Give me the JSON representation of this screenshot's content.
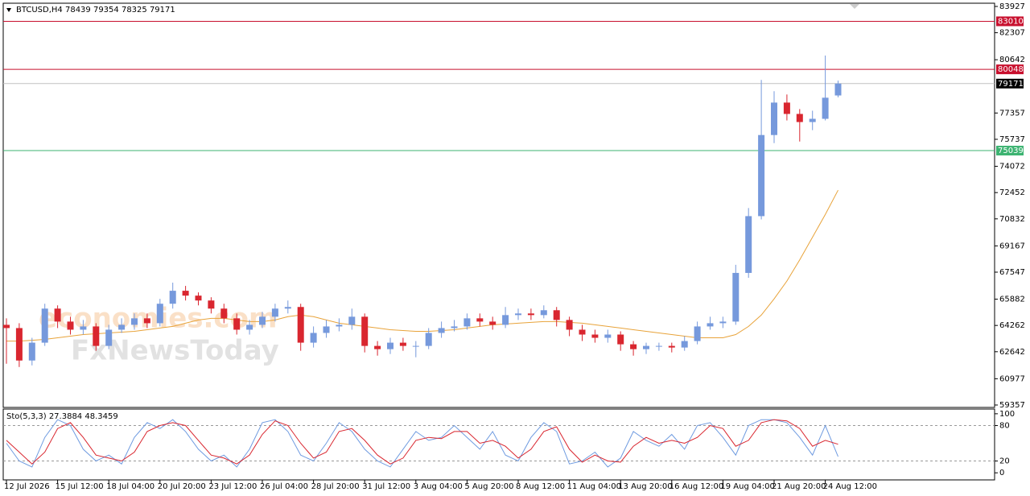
{
  "chart_data": {
    "type": "candlestick",
    "symbol_title": "BTCUSD,H4  78439 79354 78325 79171",
    "watermarks": [
      "economies.com",
      "FxNewsToday"
    ],
    "up_color": "#7699dc",
    "down_color": "#d9262f",
    "categories": [
      "12 Jul 2026",
      null,
      null,
      null,
      "15 Jul 12:00",
      null,
      null,
      null,
      "18 Jul 04:00",
      null,
      null,
      null,
      "20 Jul 20:00",
      null,
      null,
      null,
      "23 Jul 12:00",
      null,
      null,
      null,
      "26 Jul 04:00",
      null,
      null,
      null,
      "28 Jul 20:00",
      null,
      null,
      null,
      "31 Jul 12:00",
      null,
      null,
      null,
      "3 Aug 04:00",
      null,
      null,
      null,
      "5 Aug 20:00",
      null,
      null,
      null,
      "8 Aug 12:00",
      null,
      null,
      null,
      "11 Aug 04:00",
      null,
      null,
      null,
      "13 Aug 20:00",
      null,
      null,
      null,
      "16 Aug 12:00",
      null,
      null,
      null,
      "19 Aug 04:00",
      null,
      null,
      null,
      "21 Aug 20:00",
      null,
      null,
      null,
      "24 Aug 12:00",
      null
    ],
    "open": [
      64300,
      64100,
      62100,
      63200,
      65300,
      64500,
      64000,
      64200,
      63000,
      64000,
      64300,
      64700,
      64400,
      65600,
      66400,
      66100,
      65800,
      65300,
      64700,
      64000,
      64300,
      64800,
      65300,
      65400,
      63200,
      63800,
      64200,
      64300,
      64800,
      63000,
      62800,
      63200,
      63000,
      63000,
      63800,
      64100,
      64200,
      64700,
      64500,
      64300,
      64900,
      65000,
      64900,
      65200,
      64600,
      64000,
      63700,
      63500,
      63700,
      63100,
      62800,
      63000,
      63000,
      62900,
      63300,
      64200,
      64400,
      64500,
      67500,
      71000,
      76000,
      78000,
      77300,
      76800,
      77000,
      78439
    ],
    "high": [
      64700,
      64400,
      63500,
      65600,
      65500,
      64800,
      64600,
      64400,
      64300,
      64700,
      65000,
      65000,
      65900,
      66900,
      66700,
      66300,
      66000,
      65600,
      65000,
      64600,
      65100,
      65600,
      65800,
      65600,
      64200,
      64600,
      64700,
      65300,
      65000,
      63300,
      63500,
      63500,
      63300,
      64100,
      64500,
      64600,
      65000,
      65000,
      64800,
      65400,
      65300,
      65300,
      65500,
      65400,
      64800,
      64300,
      64000,
      64000,
      63900,
      63300,
      63200,
      63200,
      63200,
      63600,
      64500,
      64800,
      64800,
      68000,
      71500,
      79400,
      78700,
      78500,
      77600,
      77500,
      80900,
      79354
    ],
    "low": [
      61900,
      61700,
      61800,
      63000,
      64100,
      63700,
      63700,
      62700,
      62800,
      63800,
      64000,
      64100,
      64200,
      65300,
      65800,
      65500,
      65000,
      64400,
      63700,
      63700,
      64100,
      64500,
      65000,
      62700,
      62900,
      63500,
      63900,
      64000,
      62600,
      62400,
      62500,
      62700,
      62300,
      62800,
      63500,
      63900,
      64000,
      64200,
      64000,
      64100,
      64600,
      64600,
      64700,
      64200,
      63600,
      63300,
      63200,
      63200,
      62700,
      62400,
      62500,
      62700,
      62600,
      62700,
      63100,
      64000,
      64100,
      64300,
      67200,
      70800,
      75500,
      76900,
      75600,
      76300,
      76900,
      78325
    ],
    "close": [
      64100,
      62100,
      63200,
      65300,
      64500,
      64000,
      64200,
      63000,
      64000,
      64300,
      64700,
      64400,
      65600,
      66400,
      66100,
      65800,
      65300,
      64700,
      64000,
      64300,
      64800,
      65300,
      65400,
      63200,
      63800,
      64200,
      64300,
      64800,
      63000,
      62800,
      63200,
      63000,
      63000,
      63800,
      64100,
      64200,
      64700,
      64500,
      64300,
      64900,
      65000,
      64900,
      65200,
      64600,
      64000,
      63700,
      63500,
      63700,
      63100,
      62800,
      63000,
      63000,
      62900,
      63300,
      64200,
      64400,
      64500,
      67500,
      71000,
      76000,
      78000,
      77300,
      76800,
      77000,
      78300,
      79171
    ],
    "ma": {
      "color": "#e8a33a",
      "values": [
        63300,
        63300,
        63350,
        63400,
        63500,
        63600,
        63700,
        63750,
        63800,
        63850,
        63900,
        64000,
        64100,
        64200,
        64400,
        64600,
        64700,
        64700,
        64600,
        64500,
        64500,
        64600,
        64800,
        64900,
        64800,
        64600,
        64400,
        64300,
        64200,
        64100,
        64000,
        63950,
        63900,
        63900,
        63950,
        64000,
        64100,
        64200,
        64300,
        64350,
        64400,
        64450,
        64500,
        64500,
        64450,
        64400,
        64300,
        64200,
        64100,
        64000,
        63900,
        63800,
        63700,
        63600,
        63500,
        63500,
        63500,
        63700,
        64200,
        64900,
        65900,
        67000,
        68300,
        69700,
        71100,
        72600
      ]
    },
    "ylim": [
      59208,
      84125
    ],
    "yticks": [
      83927,
      82307,
      80642,
      77357,
      75737,
      74072,
      72452,
      70832,
      69167,
      67547,
      65882,
      64262,
      62642,
      60977,
      59357
    ],
    "levels": [
      {
        "value": 83010,
        "color": "#c8102e"
      },
      {
        "value": 80048,
        "color": "#c8102e"
      },
      {
        "value": 79171,
        "color": "#000000",
        "line_color": "#c0c0c0"
      },
      {
        "value": 75039,
        "color": "#3cb371"
      }
    ],
    "oscillator": {
      "title": "Sto(5,3,3) 27.3884 48.3459",
      "ylim": [
        -12,
        108
      ],
      "yticks": [
        0,
        20,
        80,
        100
      ],
      "levels": [
        20,
        80
      ],
      "series": [
        {
          "color": "#6f9be0",
          "values": [
            50,
            20,
            10,
            60,
            90,
            80,
            40,
            20,
            30,
            15,
            60,
            85,
            75,
            90,
            70,
            40,
            20,
            30,
            10,
            40,
            85,
            90,
            70,
            30,
            20,
            50,
            85,
            70,
            40,
            20,
            10,
            40,
            70,
            55,
            60,
            80,
            60,
            40,
            70,
            30,
            20,
            60,
            85,
            70,
            15,
            20,
            35,
            10,
            25,
            70,
            55,
            45,
            65,
            40,
            80,
            85,
            60,
            30,
            80,
            90,
            90,
            85,
            60,
            30,
            80,
            27.3884
          ]
        },
        {
          "color": "#d9262f",
          "values": [
            55,
            35,
            15,
            35,
            75,
            85,
            60,
            30,
            25,
            20,
            35,
            70,
            80,
            85,
            80,
            55,
            30,
            25,
            15,
            30,
            65,
            88,
            80,
            50,
            25,
            35,
            70,
            75,
            55,
            30,
            15,
            25,
            55,
            60,
            58,
            70,
            70,
            50,
            55,
            45,
            25,
            40,
            70,
            78,
            40,
            18,
            30,
            20,
            18,
            45,
            60,
            50,
            55,
            50,
            60,
            80,
            75,
            45,
            55,
            85,
            90,
            88,
            75,
            45,
            55,
            48.3459
          ]
        }
      ]
    }
  }
}
